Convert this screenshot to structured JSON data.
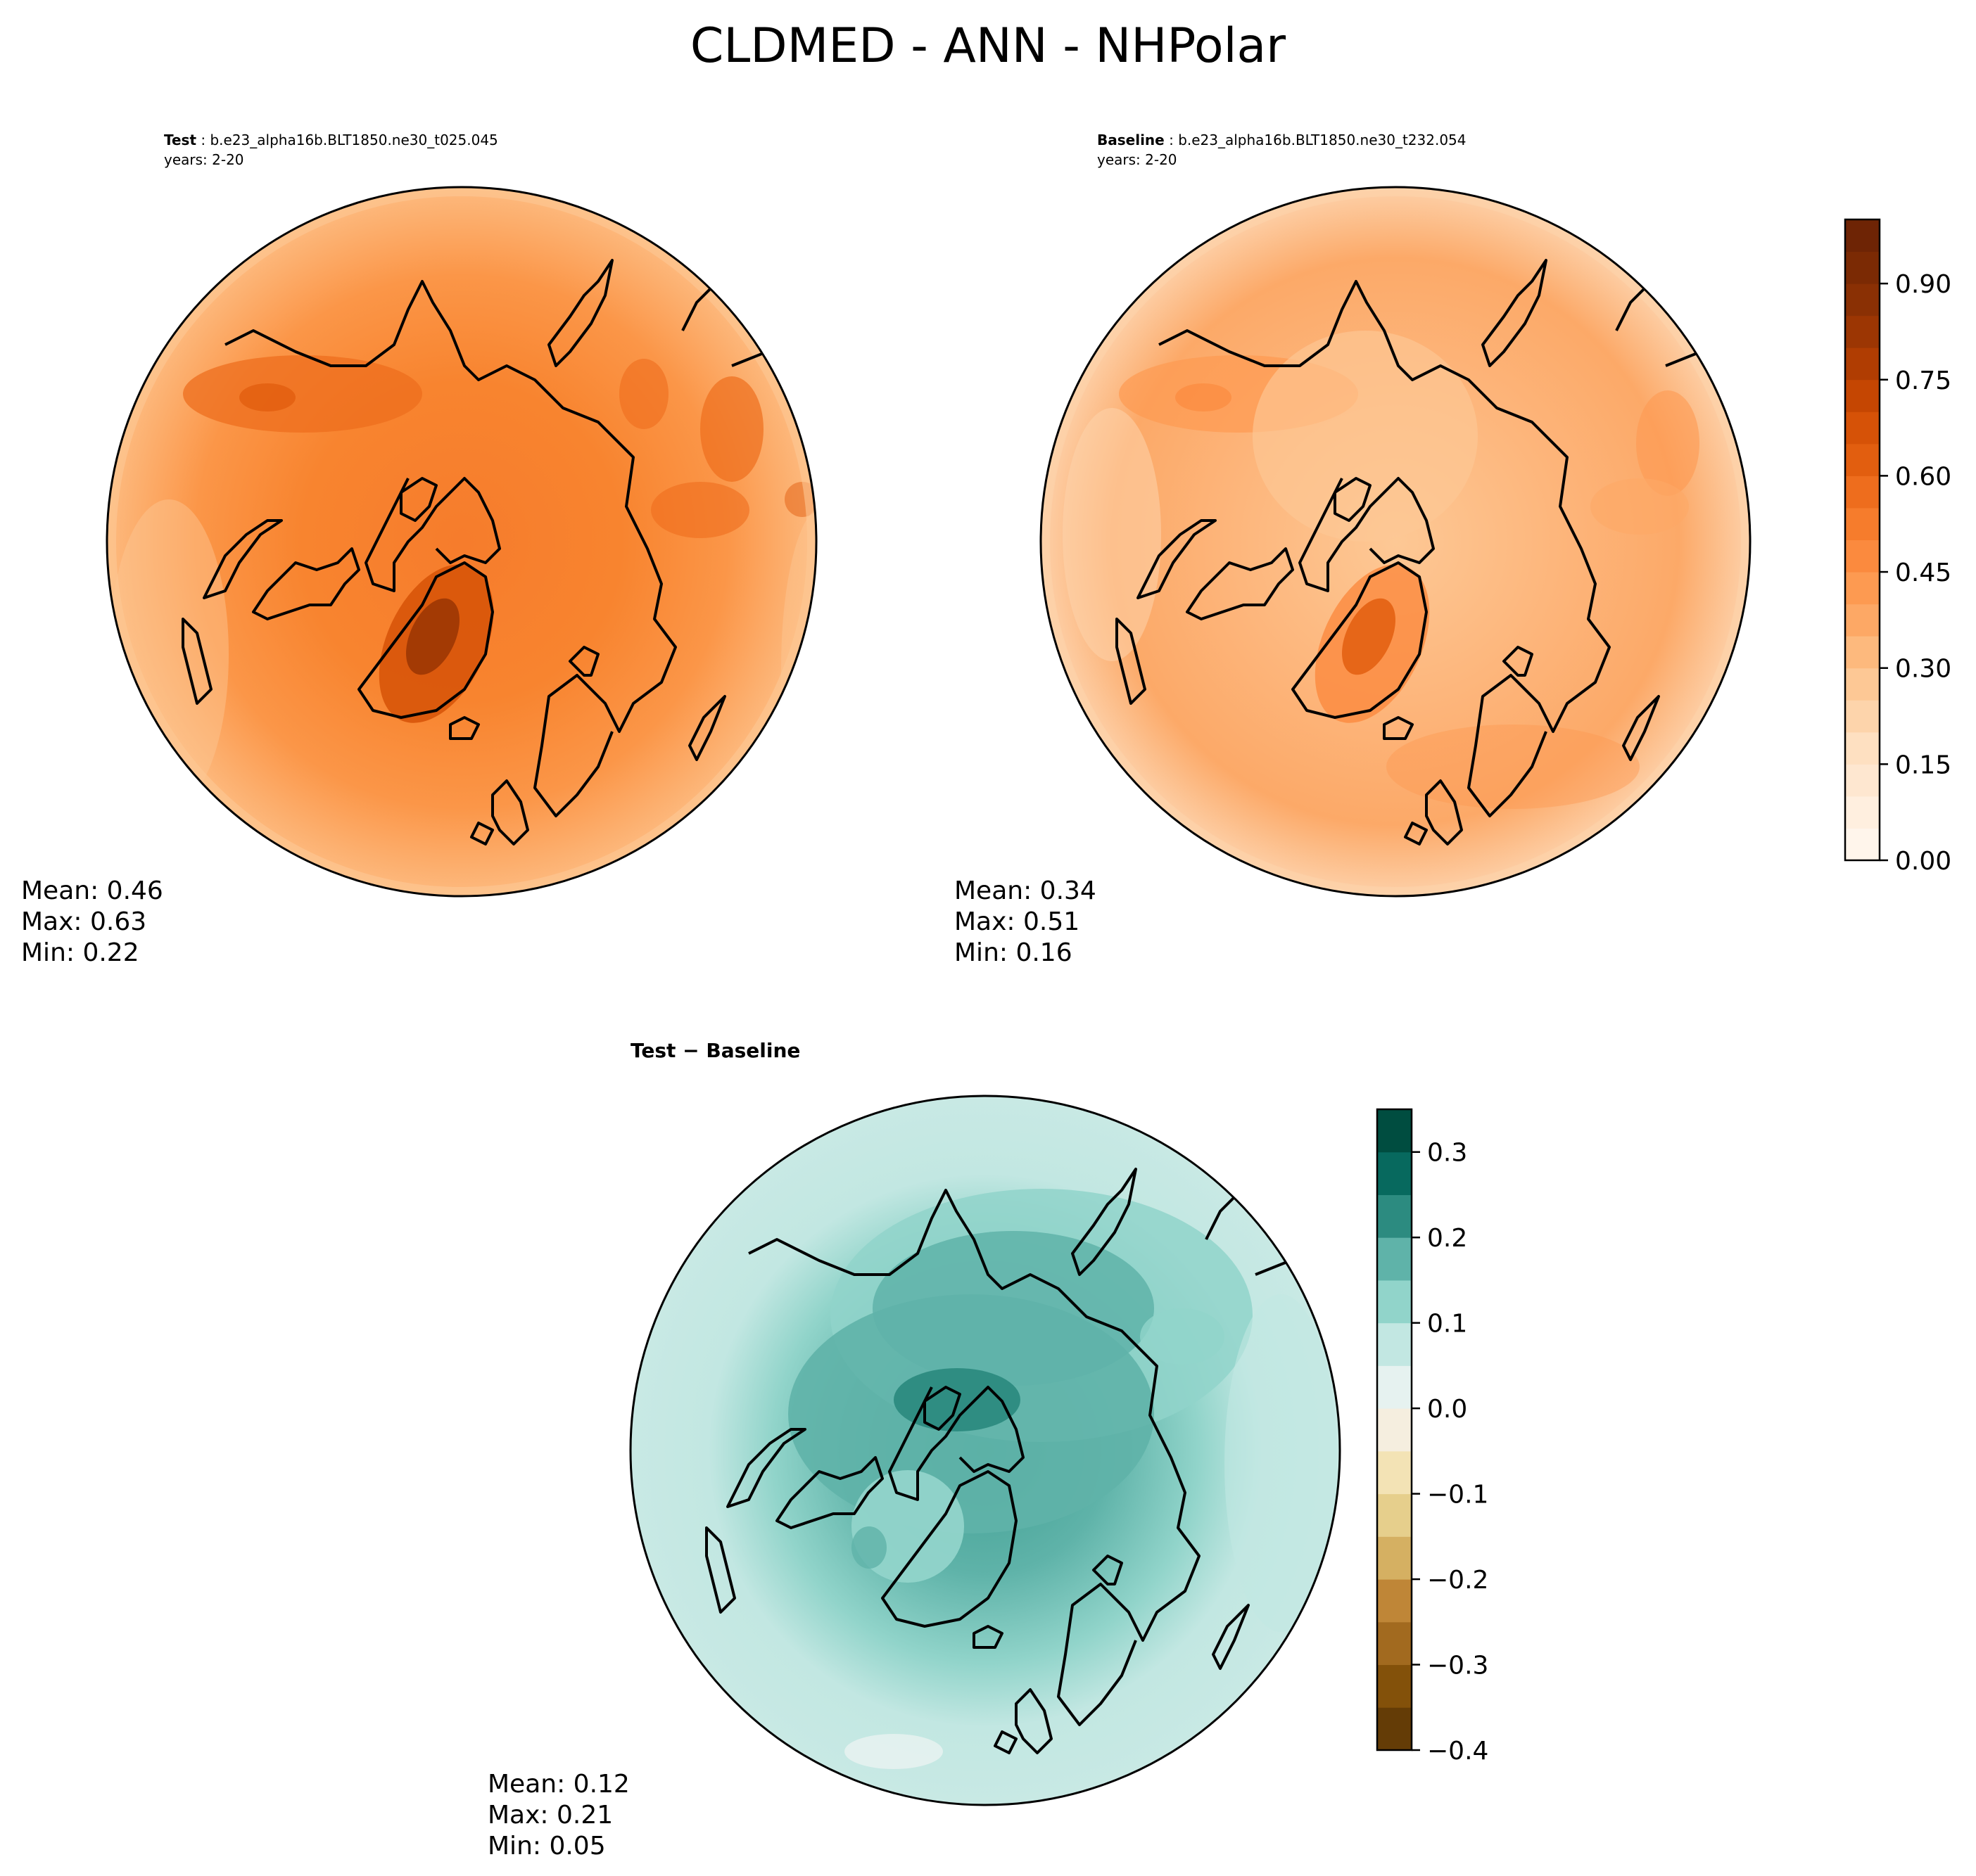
{
  "figure": {
    "title": "CLDMED - ANN - NHPolar"
  },
  "chart_data": [
    {
      "type": "heatmap",
      "projection": "north-polar-stereographic",
      "panel": "test",
      "header_bold": "Test",
      "header_text": ": b.e23_alpha16b.BLT1850.ne30_t025.045",
      "header_years": "years: 2-20",
      "stats": {
        "mean": "Mean:  0.46",
        "max": "Max:  0.63",
        "min": "Min:  0.22"
      },
      "values": {
        "mean": 0.46,
        "max": 0.63,
        "min": 0.22
      },
      "colormap": "Oranges"
    },
    {
      "type": "heatmap",
      "projection": "north-polar-stereographic",
      "panel": "baseline",
      "header_bold": "Baseline",
      "header_text": ": b.e23_alpha16b.BLT1850.ne30_t232.054",
      "header_years": "years: 2-20",
      "stats": {
        "mean": "Mean:  0.34",
        "max": "Max:  0.51",
        "min": "Min:  0.16"
      },
      "values": {
        "mean": 0.34,
        "max": 0.51,
        "min": 0.16
      },
      "colormap": "Oranges",
      "colorbar": {
        "range": [
          0.0,
          1.0
        ],
        "levels": 20,
        "ticks": [
          0.0,
          0.15,
          0.3,
          0.45,
          0.6,
          0.75,
          0.9
        ],
        "tick_labels": [
          "0.00",
          "0.15",
          "0.30",
          "0.45",
          "0.60",
          "0.75",
          "0.90"
        ],
        "colors": [
          "#fff5eb",
          "#ffefdf",
          "#fee7d0",
          "#fee0c1",
          "#fdd4ab",
          "#fdc895",
          "#fdb97d",
          "#fda865",
          "#fd9a51",
          "#fb8a3e",
          "#f67c2c",
          "#ee6d1d",
          "#e25e0f",
          "#d65207",
          "#c54602",
          "#b03d02",
          "#9c3603",
          "#8a3004",
          "#7b2a04",
          "#6e2405"
        ]
      }
    },
    {
      "type": "heatmap",
      "projection": "north-polar-stereographic",
      "panel": "difference",
      "header_bold": "Test − Baseline",
      "stats": {
        "mean": "Mean:  0.12",
        "max": "Max:  0.21",
        "min": "Min:  0.05"
      },
      "values": {
        "mean": 0.12,
        "max": 0.21,
        "min": 0.05
      },
      "colormap": "BrBG",
      "colorbar": {
        "range": [
          -0.4,
          0.35
        ],
        "bounds": [
          -0.4,
          -0.35,
          -0.3,
          -0.25,
          -0.2,
          -0.15,
          -0.1,
          -0.05,
          0.0,
          0.05,
          0.1,
          0.15,
          0.2,
          0.25,
          0.3,
          0.35
        ],
        "ticks": [
          -0.4,
          -0.3,
          -0.2,
          -0.1,
          0.0,
          0.1,
          0.2,
          0.3
        ],
        "tick_labels": [
          "−0.4",
          "−0.3",
          "−0.2",
          "−0.1",
          "0.0",
          "0.1",
          "0.2",
          "0.3"
        ],
        "colors": [
          "#643c06",
          "#83510a",
          "#a26a1f",
          "#bf8637",
          "#d5b062",
          "#e6cf8c",
          "#f3e3b5",
          "#f5eedf",
          "#e6f2f0",
          "#c2e7e2",
          "#91d4ca",
          "#5fb3a9",
          "#2c8b80",
          "#07695e",
          "#004d40"
        ]
      }
    }
  ]
}
